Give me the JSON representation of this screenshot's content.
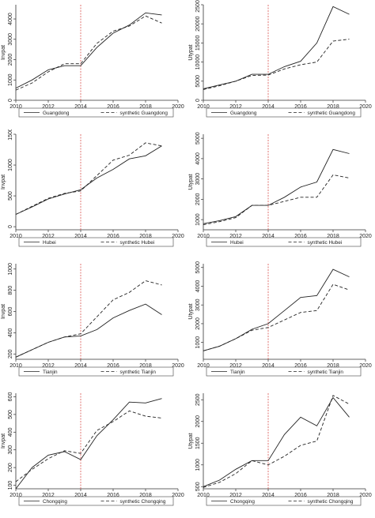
{
  "chart_data": [
    {
      "type": "line",
      "xlabel": "year",
      "ylabel": "Invpat",
      "xlim": [
        2010,
        2020
      ],
      "xticks": [
        2010,
        2012,
        2014,
        2016,
        2018,
        2020
      ],
      "ylim": [
        0,
        4700
      ],
      "yticks": [
        0,
        1000,
        2000,
        3000,
        4000
      ],
      "treatment_year": 2014,
      "x": [
        2010,
        2011,
        2012,
        2013,
        2014,
        2015,
        2016,
        2017,
        2018,
        2019
      ],
      "series": [
        {
          "name": "Guangdong",
          "style": "solid",
          "values": [
            600,
            1000,
            1500,
            1700,
            1700,
            2600,
            3300,
            3700,
            4300,
            4200
          ]
        },
        {
          "name": "synthetic Guangdong",
          "style": "dashed",
          "values": [
            500,
            850,
            1400,
            1800,
            1800,
            2800,
            3400,
            3650,
            4150,
            3800
          ]
        }
      ]
    },
    {
      "type": "line",
      "xlabel": "year",
      "ylabel": "Utypat",
      "xlim": [
        2010,
        2020
      ],
      "xticks": [
        2010,
        2012,
        2014,
        2016,
        2018,
        2020
      ],
      "ylim": [
        0,
        25000
      ],
      "yticks": [
        0,
        5000,
        10000,
        15000,
        20000,
        25000
      ],
      "treatment_year": 2014,
      "x": [
        2010,
        2011,
        2012,
        2013,
        2014,
        2015,
        2016,
        2017,
        2018,
        2019
      ],
      "series": [
        {
          "name": "Guangdong",
          "style": "solid",
          "values": [
            3000,
            4000,
            5000,
            6800,
            6800,
            8800,
            10200,
            15000,
            24500,
            22500
          ]
        },
        {
          "name": "synthetic Guangdong",
          "style": "dashed",
          "values": [
            2800,
            3800,
            5000,
            6500,
            6600,
            8200,
            9300,
            10000,
            15500,
            16000
          ]
        }
      ]
    },
    {
      "type": "line",
      "xlabel": "year",
      "ylabel": "Invpat",
      "xlim": [
        2010,
        2020
      ],
      "xticks": [
        2010,
        2012,
        2014,
        2016,
        2018,
        2020
      ],
      "ylim": [
        -50,
        1500
      ],
      "yticks": [
        0,
        500,
        1000,
        1500
      ],
      "treatment_year": 2014,
      "x": [
        2010,
        2011,
        2012,
        2013,
        2014,
        2015,
        2016,
        2017,
        2018,
        2019
      ],
      "series": [
        {
          "name": "Hubei",
          "style": "solid",
          "values": [
            200,
            320,
            450,
            530,
            600,
            790,
            930,
            1100,
            1150,
            1310
          ]
        },
        {
          "name": "synthetic Hubei",
          "style": "dashed",
          "values": [
            200,
            330,
            460,
            540,
            580,
            830,
            1080,
            1160,
            1360,
            1310
          ]
        }
      ]
    },
    {
      "type": "line",
      "xlabel": "year",
      "ylabel": "Utypat",
      "xlim": [
        2010,
        2020
      ],
      "xticks": [
        2010,
        2012,
        2014,
        2016,
        2018,
        2020
      ],
      "ylim": [
        500,
        5200
      ],
      "yticks": [
        1000,
        2000,
        3000,
        4000,
        5000
      ],
      "treatment_year": 2014,
      "x": [
        2010,
        2011,
        2012,
        2013,
        2014,
        2015,
        2016,
        2017,
        2018,
        2019
      ],
      "series": [
        {
          "name": "Hubei",
          "style": "solid",
          "values": [
            800,
            950,
            1150,
            1700,
            1700,
            2100,
            2600,
            2850,
            4450,
            4250
          ]
        },
        {
          "name": "synthetic Hubei",
          "style": "dashed",
          "values": [
            750,
            900,
            1100,
            1700,
            1700,
            1900,
            2100,
            2100,
            3200,
            3050
          ]
        }
      ]
    },
    {
      "type": "line",
      "xlabel": "year",
      "ylabel": "Invpat",
      "xlim": [
        2010,
        2020
      ],
      "xticks": [
        2010,
        2012,
        2014,
        2016,
        2018,
        2020
      ],
      "ylim": [
        150,
        1050
      ],
      "yticks": [
        200,
        400,
        600,
        800,
        1000
      ],
      "treatment_year": 2014,
      "x": [
        2010,
        2011,
        2012,
        2013,
        2014,
        2015,
        2016,
        2017,
        2018,
        2019
      ],
      "series": [
        {
          "name": "Tianjin",
          "style": "solid",
          "values": [
            170,
            240,
            310,
            360,
            370,
            430,
            540,
            610,
            670,
            570
          ]
        },
        {
          "name": "synthetic Tianjin",
          "style": "dashed",
          "values": [
            170,
            240,
            310,
            360,
            390,
            550,
            710,
            780,
            890,
            850
          ]
        }
      ]
    },
    {
      "type": "line",
      "xlabel": "year",
      "ylabel": "Utypat",
      "xlim": [
        2010,
        2020
      ],
      "xticks": [
        2010,
        2012,
        2014,
        2016,
        2018,
        2020
      ],
      "ylim": [
        100,
        5200
      ],
      "yticks": [
        1000,
        2000,
        3000,
        4000,
        5000
      ],
      "treatment_year": 2014,
      "x": [
        2010,
        2011,
        2012,
        2013,
        2014,
        2015,
        2016,
        2017,
        2018,
        2019
      ],
      "series": [
        {
          "name": "Tianjin",
          "style": "solid",
          "values": [
            550,
            800,
            1200,
            1700,
            2000,
            2700,
            3400,
            3500,
            4900,
            4500
          ]
        },
        {
          "name": "synthetic Tianjin",
          "style": "dashed",
          "values": [
            550,
            800,
            1200,
            1650,
            1800,
            2200,
            2600,
            2700,
            4100,
            3800
          ]
        }
      ]
    },
    {
      "type": "line",
      "xlabel": "year",
      "ylabel": "Invpat",
      "xlim": [
        2010,
        2020
      ],
      "xticks": [
        2010,
        2012,
        2014,
        2016,
        2018,
        2020
      ],
      "ylim": [
        80,
        620
      ],
      "yticks": [
        100,
        200,
        300,
        400,
        500,
        600
      ],
      "treatment_year": 2014,
      "x": [
        2010,
        2011,
        2012,
        2013,
        2014,
        2015,
        2016,
        2017,
        2018,
        2019
      ],
      "series": [
        {
          "name": "Chongqing",
          "style": "solid",
          "values": [
            80,
            200,
            270,
            290,
            245,
            380,
            470,
            570,
            565,
            590
          ]
        },
        {
          "name": "synthetic Chongqing",
          "style": "dashed",
          "values": [
            120,
            190,
            250,
            295,
            280,
            410,
            460,
            520,
            490,
            480
          ]
        }
      ]
    },
    {
      "type": "line",
      "xlabel": "year",
      "ylabel": "Utypat",
      "xlim": [
        2010,
        2020
      ],
      "xticks": [
        2010,
        2012,
        2014,
        2016,
        2018,
        2020
      ],
      "ylim": [
        450,
        2650
      ],
      "yticks": [
        500,
        1000,
        1500,
        2000,
        2500
      ],
      "treatment_year": 2014,
      "x": [
        2010,
        2011,
        2012,
        2013,
        2014,
        2015,
        2016,
        2017,
        2018,
        2019
      ],
      "series": [
        {
          "name": "Chongqing",
          "style": "solid",
          "values": [
            500,
            650,
            900,
            1100,
            1100,
            1700,
            2100,
            1900,
            2550,
            2100
          ]
        },
        {
          "name": "synthetic Chongqing",
          "style": "dashed",
          "values": [
            480,
            600,
            800,
            1100,
            1000,
            1200,
            1450,
            1550,
            2600,
            2400
          ]
        }
      ]
    }
  ]
}
